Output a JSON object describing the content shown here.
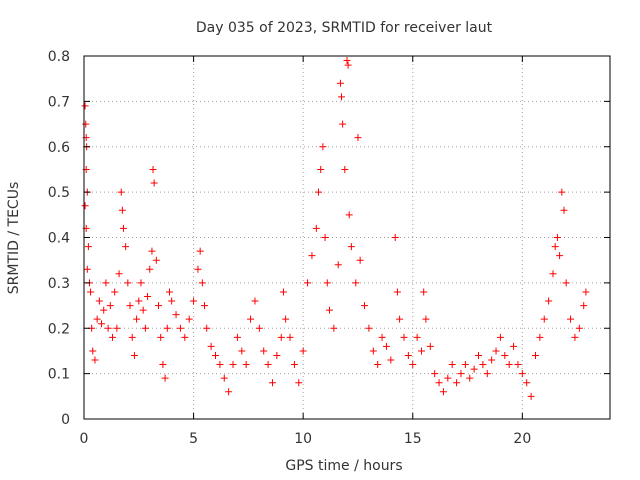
{
  "chart_data": {
    "type": "scatter",
    "title": "Day 035 of 2023, SRMTID for receiver laut",
    "xlabel": "GPS time / hours",
    "ylabel": "SRMTID / TECUs",
    "xlim": [
      0,
      24
    ],
    "ylim": [
      0,
      0.8
    ],
    "x_ticks": [
      0,
      5,
      10,
      15,
      20
    ],
    "x_tick_labels": [
      "0",
      "5",
      "10",
      "15",
      "20"
    ],
    "y_ticks": [
      0,
      0.1,
      0.2,
      0.3,
      0.4,
      0.5,
      0.6,
      0.7,
      0.8
    ],
    "y_tick_labels": [
      "0",
      "0.1",
      "0.2",
      "0.3",
      "0.4",
      "0.5",
      "0.6",
      "0.7",
      "0.8"
    ],
    "grid": true,
    "marker": "+",
    "marker_color": "#ff0000",
    "series": [
      {
        "name": "SRMTID",
        "points": [
          [
            0.05,
            0.69
          ],
          [
            0.08,
            0.65
          ],
          [
            0.1,
            0.62
          ],
          [
            0.12,
            0.6
          ],
          [
            0.1,
            0.55
          ],
          [
            0.15,
            0.5
          ],
          [
            0.05,
            0.47
          ],
          [
            0.1,
            0.42
          ],
          [
            0.2,
            0.38
          ],
          [
            0.15,
            0.33
          ],
          [
            0.25,
            0.3
          ],
          [
            0.3,
            0.28
          ],
          [
            0.35,
            0.2
          ],
          [
            0.4,
            0.15
          ],
          [
            0.5,
            0.13
          ],
          [
            0.6,
            0.22
          ],
          [
            0.7,
            0.26
          ],
          [
            0.8,
            0.21
          ],
          [
            0.9,
            0.24
          ],
          [
            1.0,
            0.3
          ],
          [
            1.1,
            0.2
          ],
          [
            1.2,
            0.25
          ],
          [
            1.3,
            0.18
          ],
          [
            1.4,
            0.28
          ],
          [
            1.5,
            0.2
          ],
          [
            1.6,
            0.32
          ],
          [
            1.7,
            0.5
          ],
          [
            1.75,
            0.46
          ],
          [
            1.8,
            0.42
          ],
          [
            1.9,
            0.38
          ],
          [
            2.0,
            0.3
          ],
          [
            2.1,
            0.25
          ],
          [
            2.2,
            0.18
          ],
          [
            2.3,
            0.14
          ],
          [
            2.4,
            0.22
          ],
          [
            2.5,
            0.26
          ],
          [
            2.6,
            0.3
          ],
          [
            2.7,
            0.24
          ],
          [
            2.8,
            0.2
          ],
          [
            2.9,
            0.27
          ],
          [
            3.0,
            0.33
          ],
          [
            3.1,
            0.37
          ],
          [
            3.15,
            0.55
          ],
          [
            3.2,
            0.52
          ],
          [
            3.3,
            0.35
          ],
          [
            3.4,
            0.25
          ],
          [
            3.5,
            0.18
          ],
          [
            3.6,
            0.12
          ],
          [
            3.7,
            0.09
          ],
          [
            3.8,
            0.2
          ],
          [
            3.9,
            0.28
          ],
          [
            4.0,
            0.26
          ],
          [
            4.2,
            0.23
          ],
          [
            4.4,
            0.2
          ],
          [
            4.6,
            0.18
          ],
          [
            4.8,
            0.22
          ],
          [
            5.0,
            0.26
          ],
          [
            5.2,
            0.33
          ],
          [
            5.3,
            0.37
          ],
          [
            5.4,
            0.3
          ],
          [
            5.5,
            0.25
          ],
          [
            5.6,
            0.2
          ],
          [
            5.8,
            0.16
          ],
          [
            6.0,
            0.14
          ],
          [
            6.2,
            0.12
          ],
          [
            6.4,
            0.09
          ],
          [
            6.6,
            0.06
          ],
          [
            6.8,
            0.12
          ],
          [
            7.0,
            0.18
          ],
          [
            7.2,
            0.15
          ],
          [
            7.4,
            0.12
          ],
          [
            7.6,
            0.22
          ],
          [
            7.8,
            0.26
          ],
          [
            8.0,
            0.2
          ],
          [
            8.2,
            0.15
          ],
          [
            8.4,
            0.12
          ],
          [
            8.6,
            0.08
          ],
          [
            8.8,
            0.14
          ],
          [
            9.0,
            0.18
          ],
          [
            9.1,
            0.28
          ],
          [
            9.2,
            0.22
          ],
          [
            9.4,
            0.18
          ],
          [
            9.6,
            0.12
          ],
          [
            9.8,
            0.08
          ],
          [
            10.0,
            0.15
          ],
          [
            10.2,
            0.3
          ],
          [
            10.4,
            0.36
          ],
          [
            10.6,
            0.42
          ],
          [
            10.7,
            0.5
          ],
          [
            10.8,
            0.55
          ],
          [
            10.9,
            0.6
          ],
          [
            11.0,
            0.4
          ],
          [
            11.1,
            0.3
          ],
          [
            11.2,
            0.24
          ],
          [
            11.4,
            0.2
          ],
          [
            11.6,
            0.34
          ],
          [
            11.7,
            0.74
          ],
          [
            11.75,
            0.71
          ],
          [
            11.8,
            0.65
          ],
          [
            11.9,
            0.55
          ],
          [
            12.0,
            0.79
          ],
          [
            12.05,
            0.78
          ],
          [
            12.1,
            0.45
          ],
          [
            12.2,
            0.38
          ],
          [
            12.4,
            0.3
          ],
          [
            12.5,
            0.62
          ],
          [
            12.6,
            0.35
          ],
          [
            12.8,
            0.25
          ],
          [
            13.0,
            0.2
          ],
          [
            13.2,
            0.15
          ],
          [
            13.4,
            0.12
          ],
          [
            13.6,
            0.18
          ],
          [
            13.8,
            0.16
          ],
          [
            14.0,
            0.13
          ],
          [
            14.2,
            0.4
          ],
          [
            14.3,
            0.28
          ],
          [
            14.4,
            0.22
          ],
          [
            14.6,
            0.18
          ],
          [
            14.8,
            0.14
          ],
          [
            15.0,
            0.12
          ],
          [
            15.2,
            0.18
          ],
          [
            15.4,
            0.15
          ],
          [
            15.5,
            0.28
          ],
          [
            15.6,
            0.22
          ],
          [
            15.8,
            0.16
          ],
          [
            16.0,
            0.1
          ],
          [
            16.2,
            0.08
          ],
          [
            16.4,
            0.06
          ],
          [
            16.6,
            0.09
          ],
          [
            16.8,
            0.12
          ],
          [
            17.0,
            0.08
          ],
          [
            17.2,
            0.1
          ],
          [
            17.4,
            0.12
          ],
          [
            17.6,
            0.09
          ],
          [
            17.8,
            0.11
          ],
          [
            18.0,
            0.14
          ],
          [
            18.2,
            0.12
          ],
          [
            18.4,
            0.1
          ],
          [
            18.6,
            0.13
          ],
          [
            18.8,
            0.15
          ],
          [
            19.0,
            0.18
          ],
          [
            19.2,
            0.14
          ],
          [
            19.4,
            0.12
          ],
          [
            19.6,
            0.16
          ],
          [
            19.8,
            0.12
          ],
          [
            20.0,
            0.1
          ],
          [
            20.2,
            0.08
          ],
          [
            20.4,
            0.05
          ],
          [
            20.6,
            0.14
          ],
          [
            20.8,
            0.18
          ],
          [
            21.0,
            0.22
          ],
          [
            21.2,
            0.26
          ],
          [
            21.4,
            0.32
          ],
          [
            21.5,
            0.38
          ],
          [
            21.6,
            0.4
          ],
          [
            21.7,
            0.36
          ],
          [
            21.8,
            0.5
          ],
          [
            21.9,
            0.46
          ],
          [
            22.0,
            0.3
          ],
          [
            22.2,
            0.22
          ],
          [
            22.4,
            0.18
          ],
          [
            22.6,
            0.2
          ],
          [
            22.8,
            0.25
          ],
          [
            22.9,
            0.28
          ]
        ]
      }
    ]
  }
}
